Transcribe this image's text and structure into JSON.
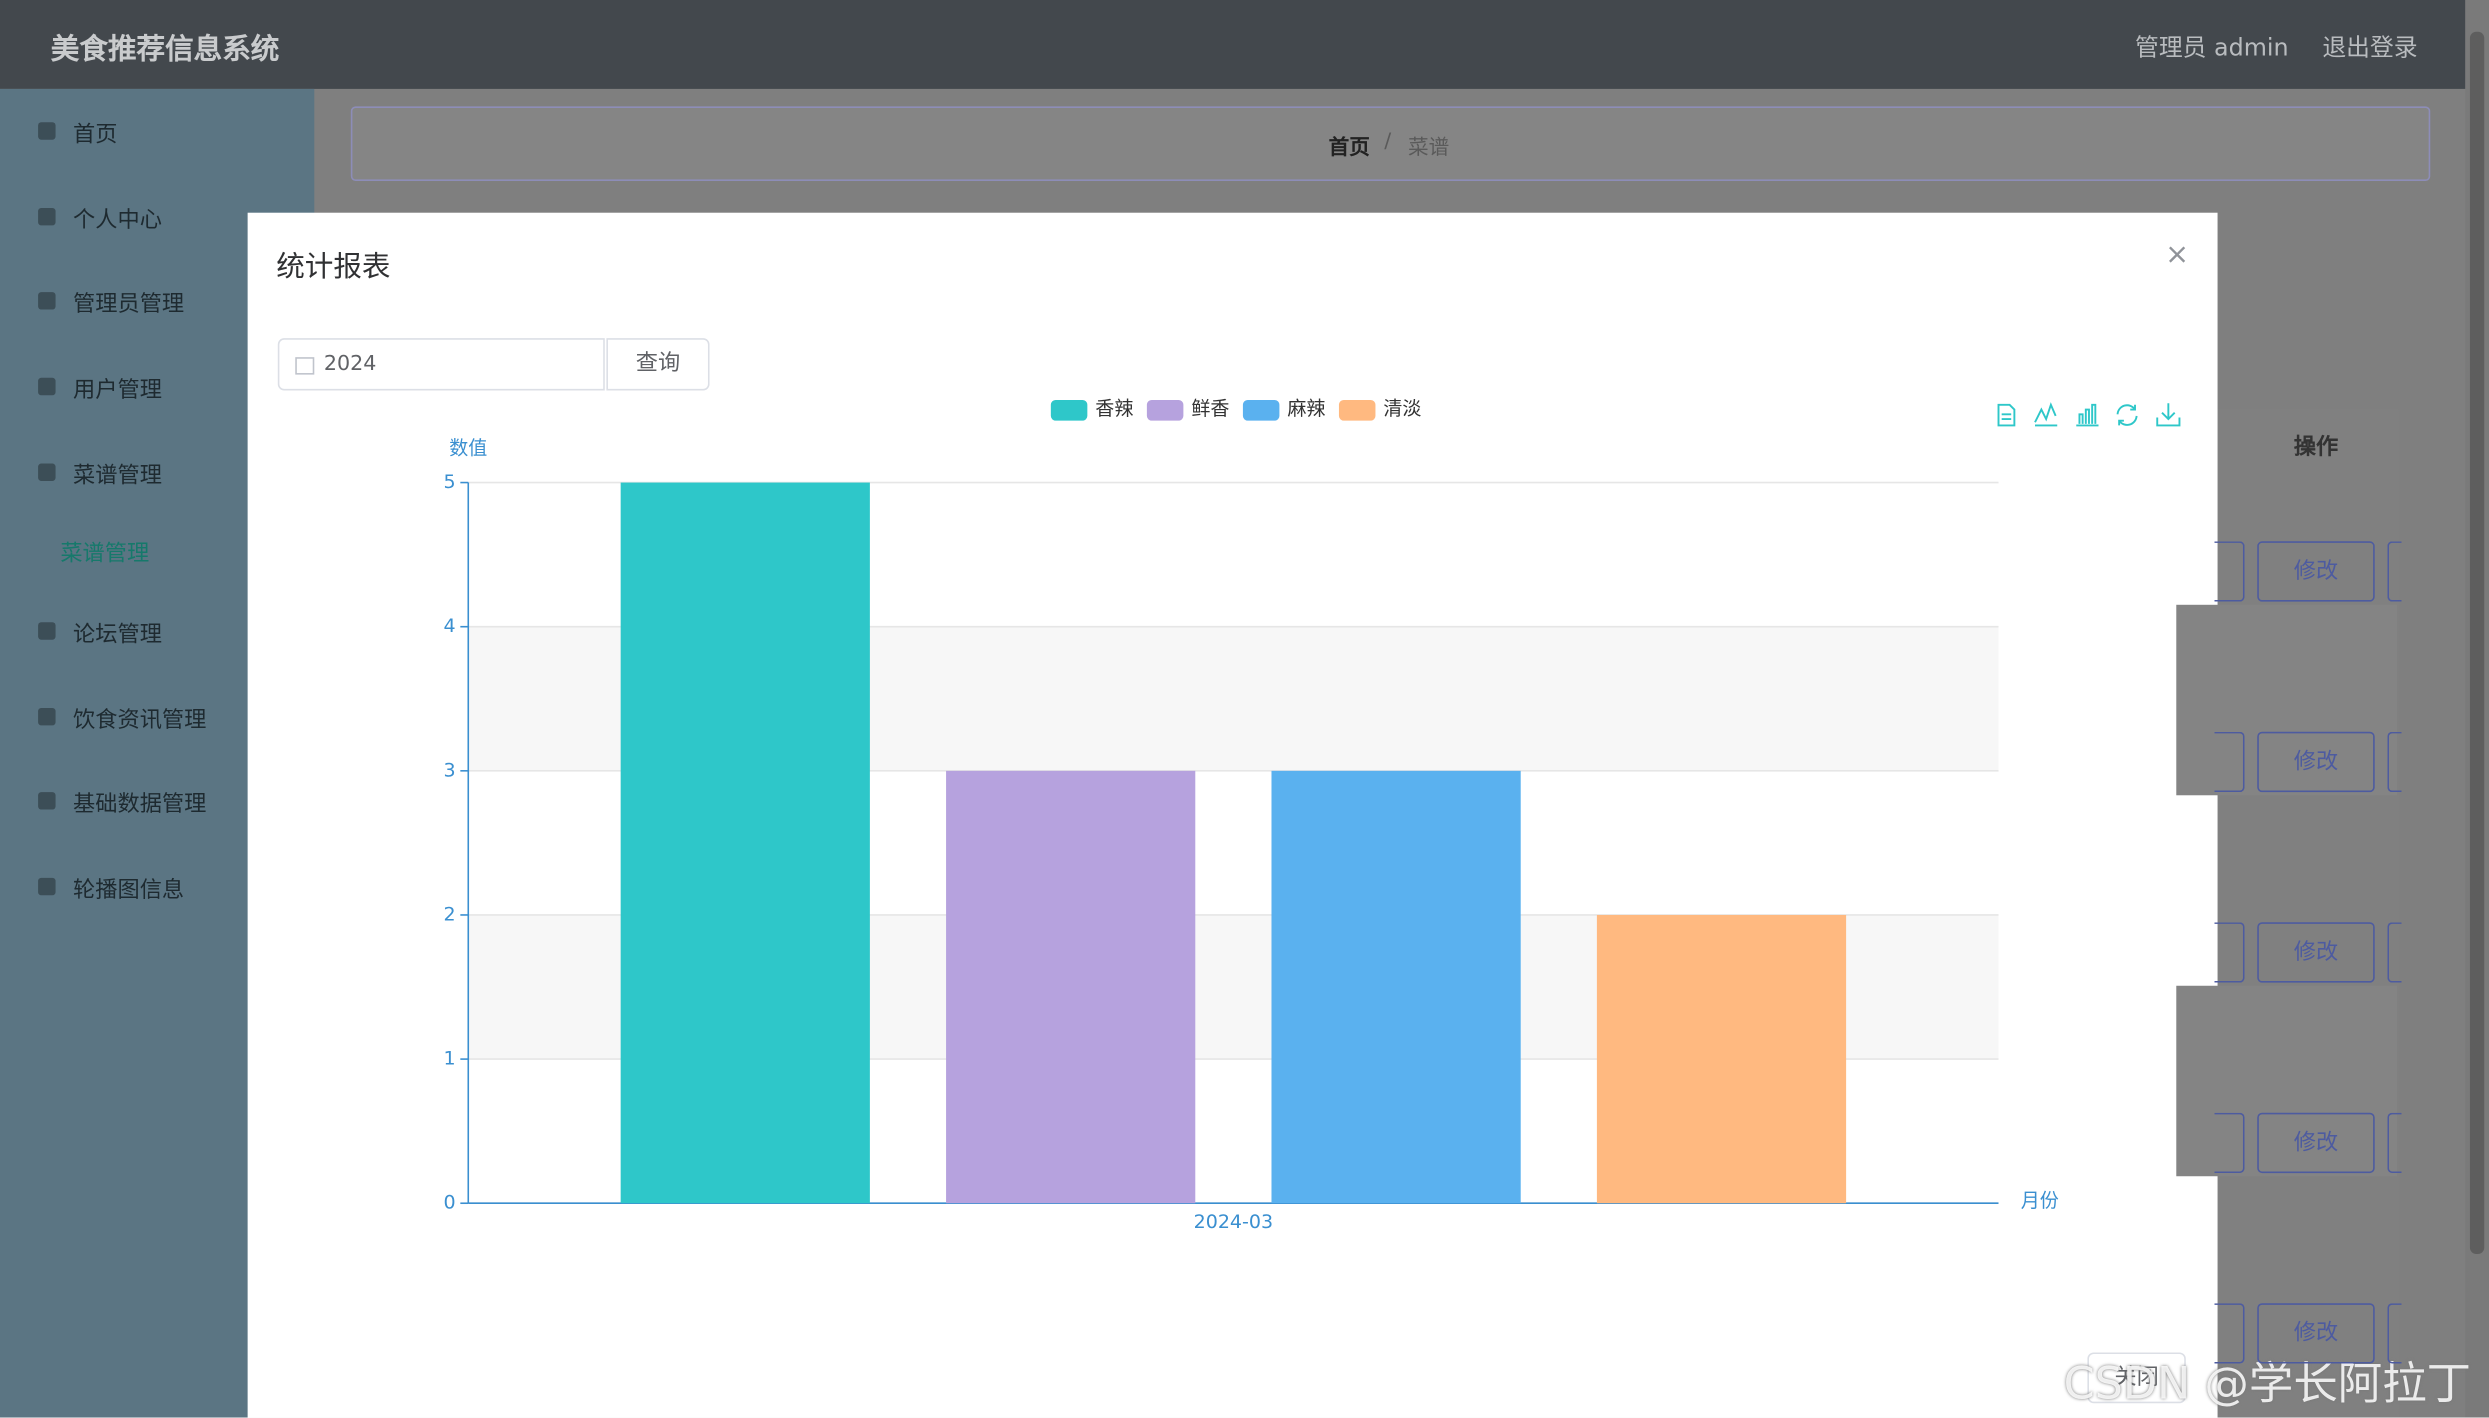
{
  "header": {
    "title": "美食推荐信息系统",
    "user": "管理员 admin",
    "logout": "退出登录"
  },
  "sidebar": {
    "items": [
      "首页",
      "个人中心",
      "管理员管理",
      "用户管理",
      "菜谱管理",
      "菜谱管理",
      "论坛管理",
      "饮食资讯管理",
      "基础数据管理",
      "轮播图信息"
    ]
  },
  "breadcrumb": {
    "home": "首页",
    "separator": "/",
    "current": "菜谱"
  },
  "table": {
    "action_header": "操作",
    "buttons": [
      "修改",
      "修改",
      "修改",
      "修改",
      "修改"
    ]
  },
  "modal": {
    "title": "统计报表",
    "date": "2024",
    "query": "查询",
    "close": "关闭"
  },
  "watermark": "CSDN @学长阿拉丁",
  "chart_data": {
    "type": "bar",
    "categories": [
      "2024-03"
    ],
    "series": [
      {
        "name": "香辣",
        "color": "#2ec7c9",
        "values": [
          5
        ]
      },
      {
        "name": "鲜香",
        "color": "#b6a2de",
        "values": [
          3
        ]
      },
      {
        "name": "麻辣",
        "color": "#5ab1ef",
        "values": [
          3
        ]
      },
      {
        "name": "清淡",
        "color": "#ffb980",
        "values": [
          2
        ]
      }
    ],
    "y_label": "数值",
    "x_label": "月份",
    "ylim": [
      0,
      5
    ],
    "yticks": [
      0,
      1,
      2,
      3,
      4,
      5
    ],
    "grid": true,
    "split_area": true,
    "legend": "top"
  }
}
